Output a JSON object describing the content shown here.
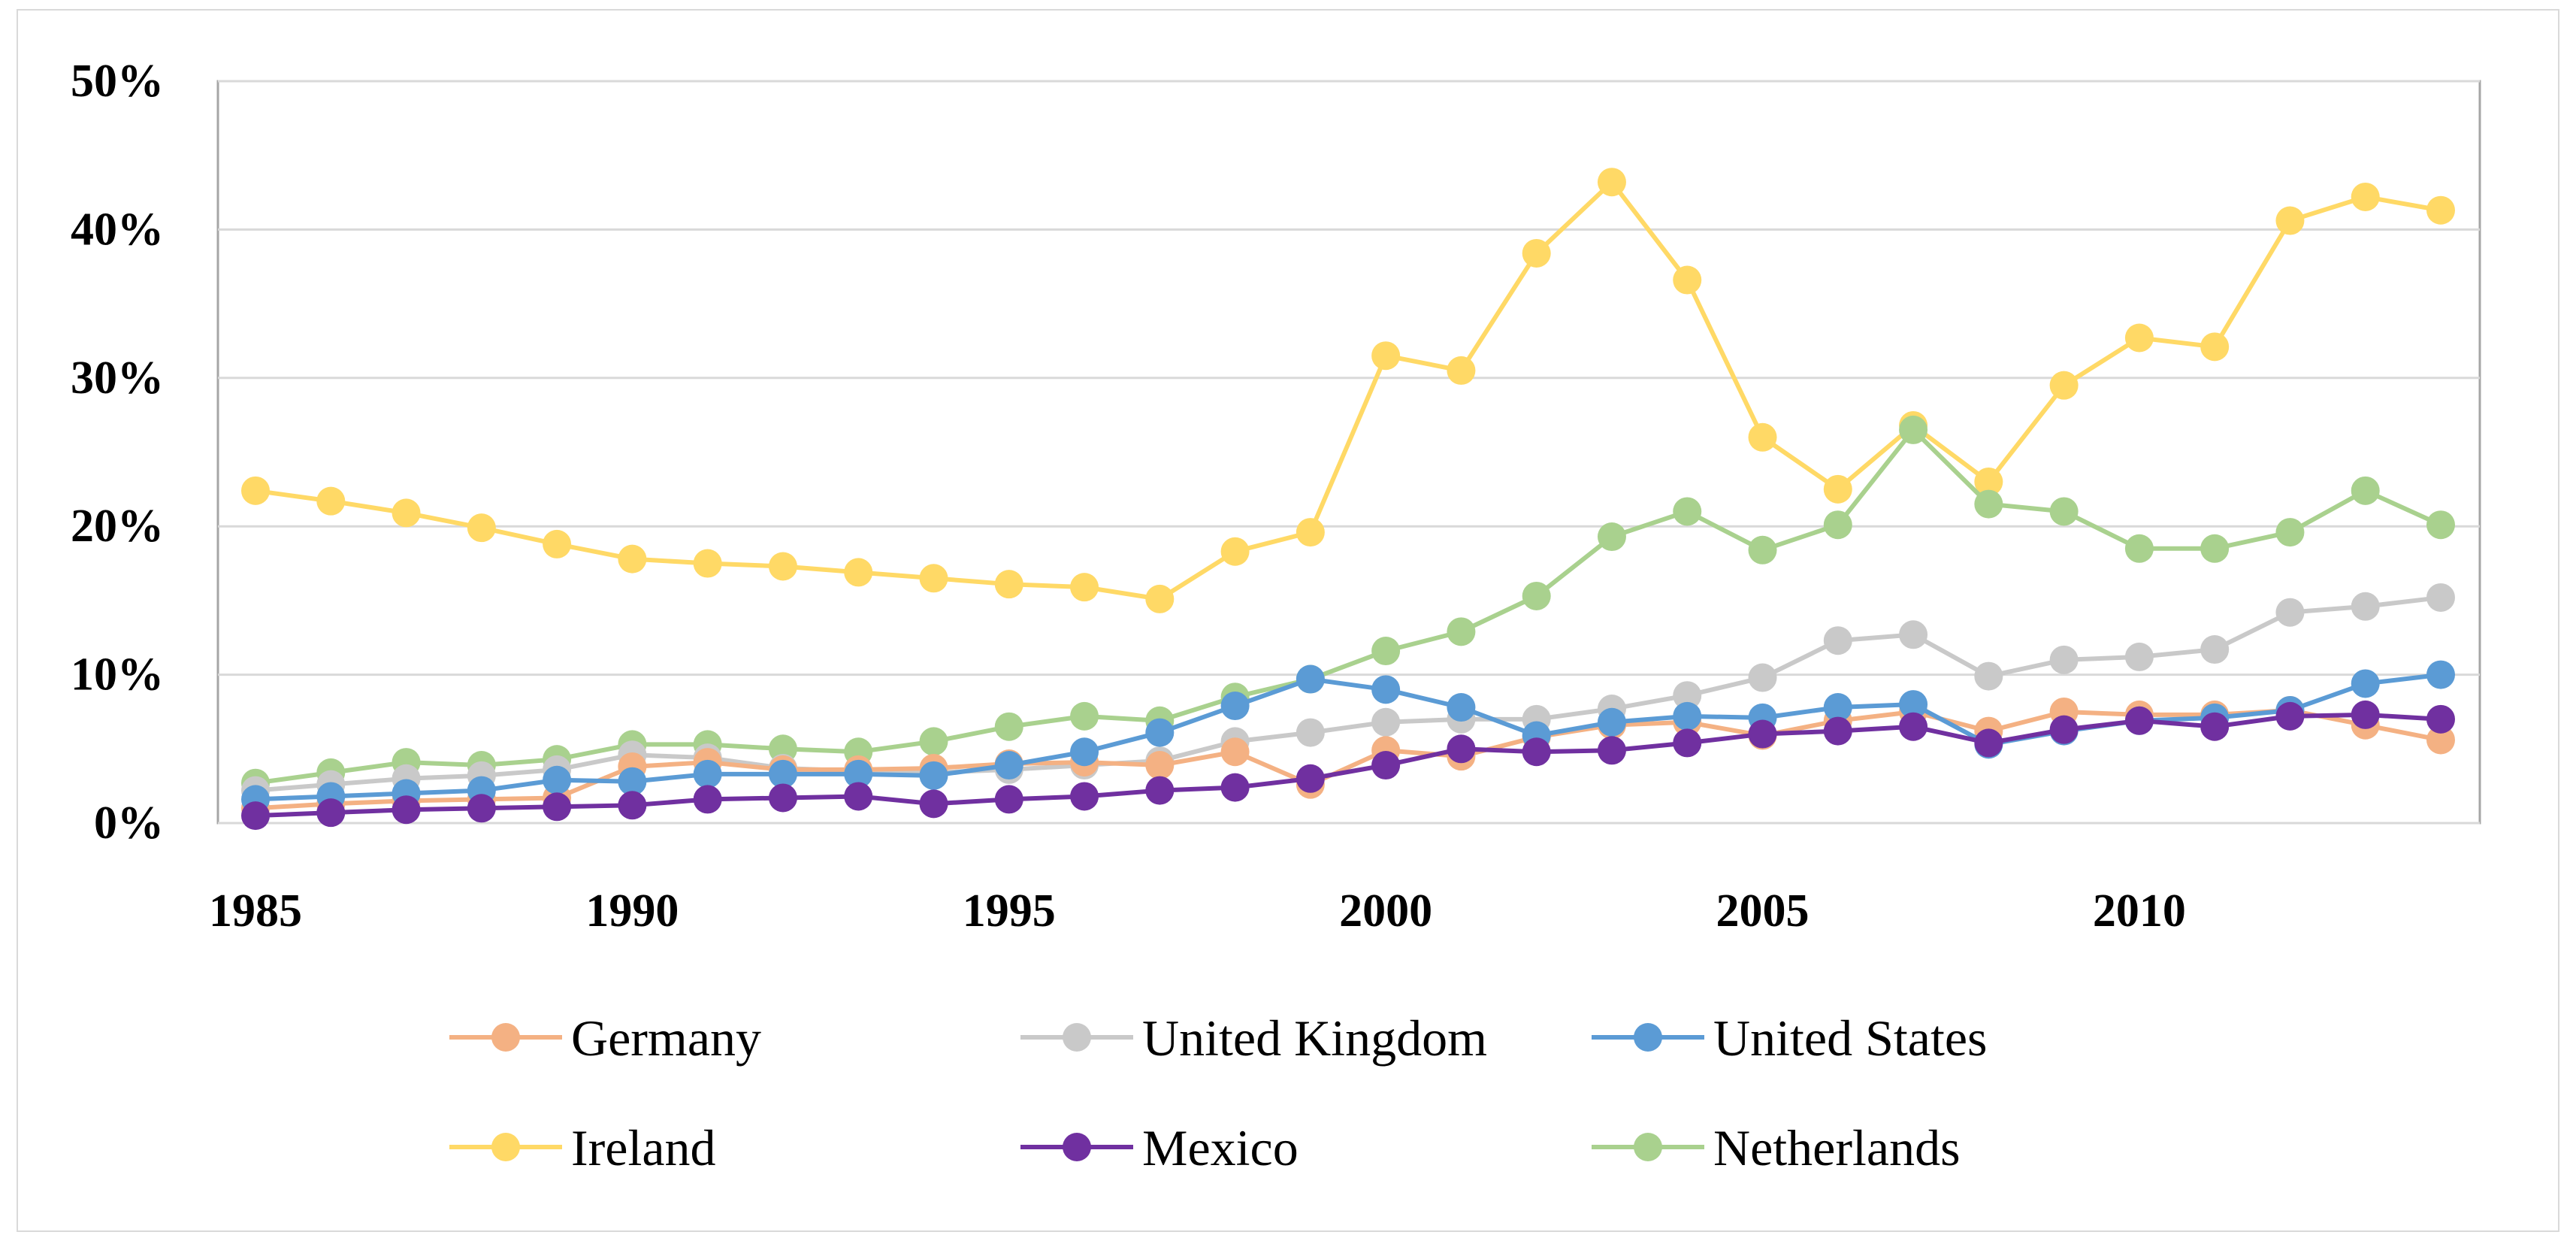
{
  "chart_data": {
    "type": "line",
    "title": "",
    "xlabel": "",
    "ylabel": "",
    "x": [
      1985,
      1986,
      1987,
      1988,
      1989,
      1990,
      1991,
      1992,
      1993,
      1994,
      1995,
      1996,
      1997,
      1998,
      1999,
      2000,
      2001,
      2002,
      2003,
      2004,
      2005,
      2006,
      2007,
      2008,
      2009,
      2010,
      2011,
      2012,
      2013,
      2014
    ],
    "xlim": [
      1985,
      2014
    ],
    "ylim": [
      0,
      50
    ],
    "x_ticks": [
      1985,
      1990,
      1995,
      2000,
      2005,
      2010
    ],
    "y_ticks": [
      0,
      10,
      20,
      30,
      40,
      50
    ],
    "x_tick_labels": [
      "1985",
      "1990",
      "1995",
      "2000",
      "2005",
      "2010"
    ],
    "y_tick_labels": [
      "0%",
      "10%",
      "20%",
      "30%",
      "40%",
      "50%"
    ],
    "grid": true,
    "legend_position": "bottom",
    "series": [
      {
        "name": "Germany",
        "color": "#F4B183",
        "values": [
          1.0,
          1.3,
          1.5,
          1.6,
          1.7,
          3.8,
          4.1,
          3.6,
          3.6,
          3.7,
          4.0,
          4.1,
          3.9,
          4.8,
          2.6,
          4.9,
          4.5,
          5.8,
          6.6,
          6.8,
          5.9,
          6.9,
          7.5,
          6.2,
          7.5,
          7.3,
          7.3,
          7.6,
          6.6,
          5.6
        ]
      },
      {
        "name": "United Kingdom",
        "color": "#C9C9C9",
        "values": [
          2.2,
          2.6,
          3.0,
          3.2,
          3.6,
          4.6,
          4.4,
          3.7,
          3.5,
          3.4,
          3.6,
          3.9,
          4.2,
          5.5,
          6.1,
          6.8,
          7.0,
          7.0,
          7.7,
          8.6,
          9.8,
          12.3,
          12.7,
          9.9,
          11.0,
          11.2,
          11.7,
          14.2,
          14.6,
          15.2
        ]
      },
      {
        "name": "United States",
        "color": "#5B9BD5",
        "values": [
          1.6,
          1.8,
          2.0,
          2.2,
          2.9,
          2.8,
          3.3,
          3.3,
          3.3,
          3.2,
          3.9,
          4.8,
          6.1,
          7.9,
          9.7,
          9.0,
          7.8,
          5.9,
          6.8,
          7.2,
          7.1,
          7.8,
          8.0,
          5.3,
          6.2,
          6.9,
          7.1,
          7.6,
          9.4,
          10.0
        ]
      },
      {
        "name": "Ireland",
        "color": "#FFD966",
        "values": [
          22.4,
          21.7,
          20.9,
          19.9,
          18.8,
          17.8,
          17.5,
          17.3,
          16.9,
          16.5,
          16.1,
          15.9,
          15.1,
          18.3,
          19.6,
          31.5,
          30.5,
          38.4,
          43.2,
          36.6,
          26.0,
          22.5,
          26.8,
          23.0,
          29.5,
          32.7,
          32.1,
          40.6,
          42.2,
          41.3
        ]
      },
      {
        "name": "Mexico",
        "color": "#7030A0",
        "values": [
          0.5,
          0.7,
          0.9,
          1.0,
          1.1,
          1.2,
          1.6,
          1.7,
          1.8,
          1.3,
          1.6,
          1.8,
          2.2,
          2.4,
          3.0,
          3.9,
          5.0,
          4.8,
          4.9,
          5.4,
          6.0,
          6.2,
          6.5,
          5.4,
          6.3,
          6.9,
          6.5,
          7.2,
          7.3,
          7.0
        ]
      },
      {
        "name": "Netherlands",
        "color": "#A9D18E",
        "values": [
          2.7,
          3.4,
          4.1,
          3.9,
          4.3,
          5.3,
          5.3,
          5.0,
          4.8,
          5.5,
          6.5,
          7.2,
          6.9,
          8.5,
          9.7,
          11.6,
          12.9,
          15.3,
          19.3,
          21.0,
          18.4,
          20.1,
          26.5,
          21.5,
          21.0,
          18.5,
          18.5,
          19.6,
          22.4,
          20.1
        ]
      }
    ]
  }
}
